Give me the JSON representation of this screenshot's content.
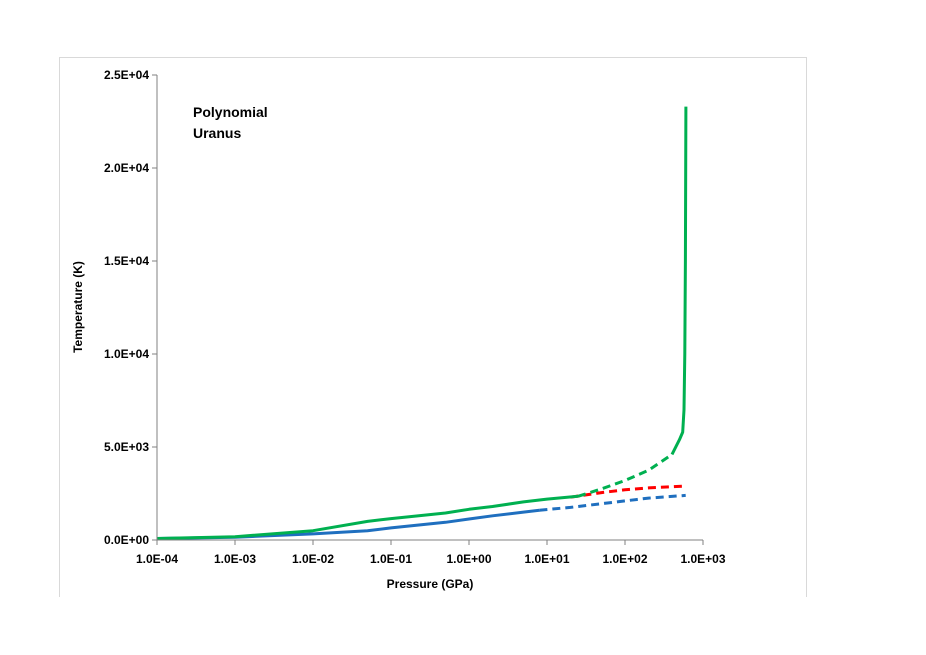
{
  "chart_data": {
    "type": "line",
    "title": "",
    "xlabel": "Pressure (GPa)",
    "ylabel": "Temperature (K)",
    "x_scale": "log",
    "xlim": [
      0.0001,
      1000
    ],
    "ylim": [
      0,
      25000
    ],
    "x_ticks": [
      0.0001,
      0.001,
      0.01,
      0.1,
      1,
      10,
      100,
      1000
    ],
    "x_tick_labels": [
      "1.0E-04",
      "1.0E-03",
      "1.0E-02",
      "1.0E-01",
      "1.0E+00",
      "1.0E+01",
      "1.0E+02",
      "1.0E+03"
    ],
    "y_ticks": [
      0,
      5000,
      10000,
      15000,
      20000,
      25000
    ],
    "y_tick_labels": [
      "0.0E+00",
      "5.0E+03",
      "1.0E+04",
      "1.5E+04",
      "2.0E+04",
      "2.5E+04"
    ],
    "grid": false,
    "annotations": [
      "Polynomial",
      "Uranus"
    ],
    "series": [
      {
        "color": "#ff0000",
        "segments": [
          {
            "style": "dashed",
            "x": [
              20,
              50,
              100,
              200,
              600
            ],
            "y": [
              2300,
              2550,
              2700,
              2800,
              2900
            ]
          }
        ]
      },
      {
        "color": "#1f6fbf",
        "segments": [
          {
            "style": "solid",
            "x": [
              0.0001,
              0.001,
              0.01,
              0.05,
              0.1,
              0.5,
              1,
              2,
              5,
              8
            ],
            "y": [
              80,
              150,
              330,
              500,
              650,
              950,
              1130,
              1300,
              1500,
              1600
            ]
          },
          {
            "style": "dashed",
            "x": [
              8,
              20,
              50,
              100,
              200,
              600
            ],
            "y": [
              1600,
              1750,
              1950,
              2100,
              2250,
              2400
            ]
          }
        ]
      },
      {
        "color": "#00b050",
        "segments": [
          {
            "style": "solid",
            "x": [
              0.0001,
              0.001,
              0.01,
              0.05,
              0.1,
              0.5,
              1,
              2,
              5,
              10,
              25
            ],
            "y": [
              80,
              180,
              500,
              1000,
              1150,
              1450,
              1650,
              1800,
              2050,
              2200,
              2350
            ]
          },
          {
            "style": "dashed",
            "x": [
              25,
              50,
              100,
              200,
              400
            ],
            "y": [
              2350,
              2750,
              3200,
              3750,
              4600
            ]
          },
          {
            "style": "solid",
            "x": [
              400,
              500,
              550,
              570,
              585,
              595,
              600,
              603
            ],
            "y": [
              4600,
              5400,
              5800,
              7000,
              10000,
              15000,
              20000,
              23300
            ]
          }
        ]
      }
    ]
  }
}
